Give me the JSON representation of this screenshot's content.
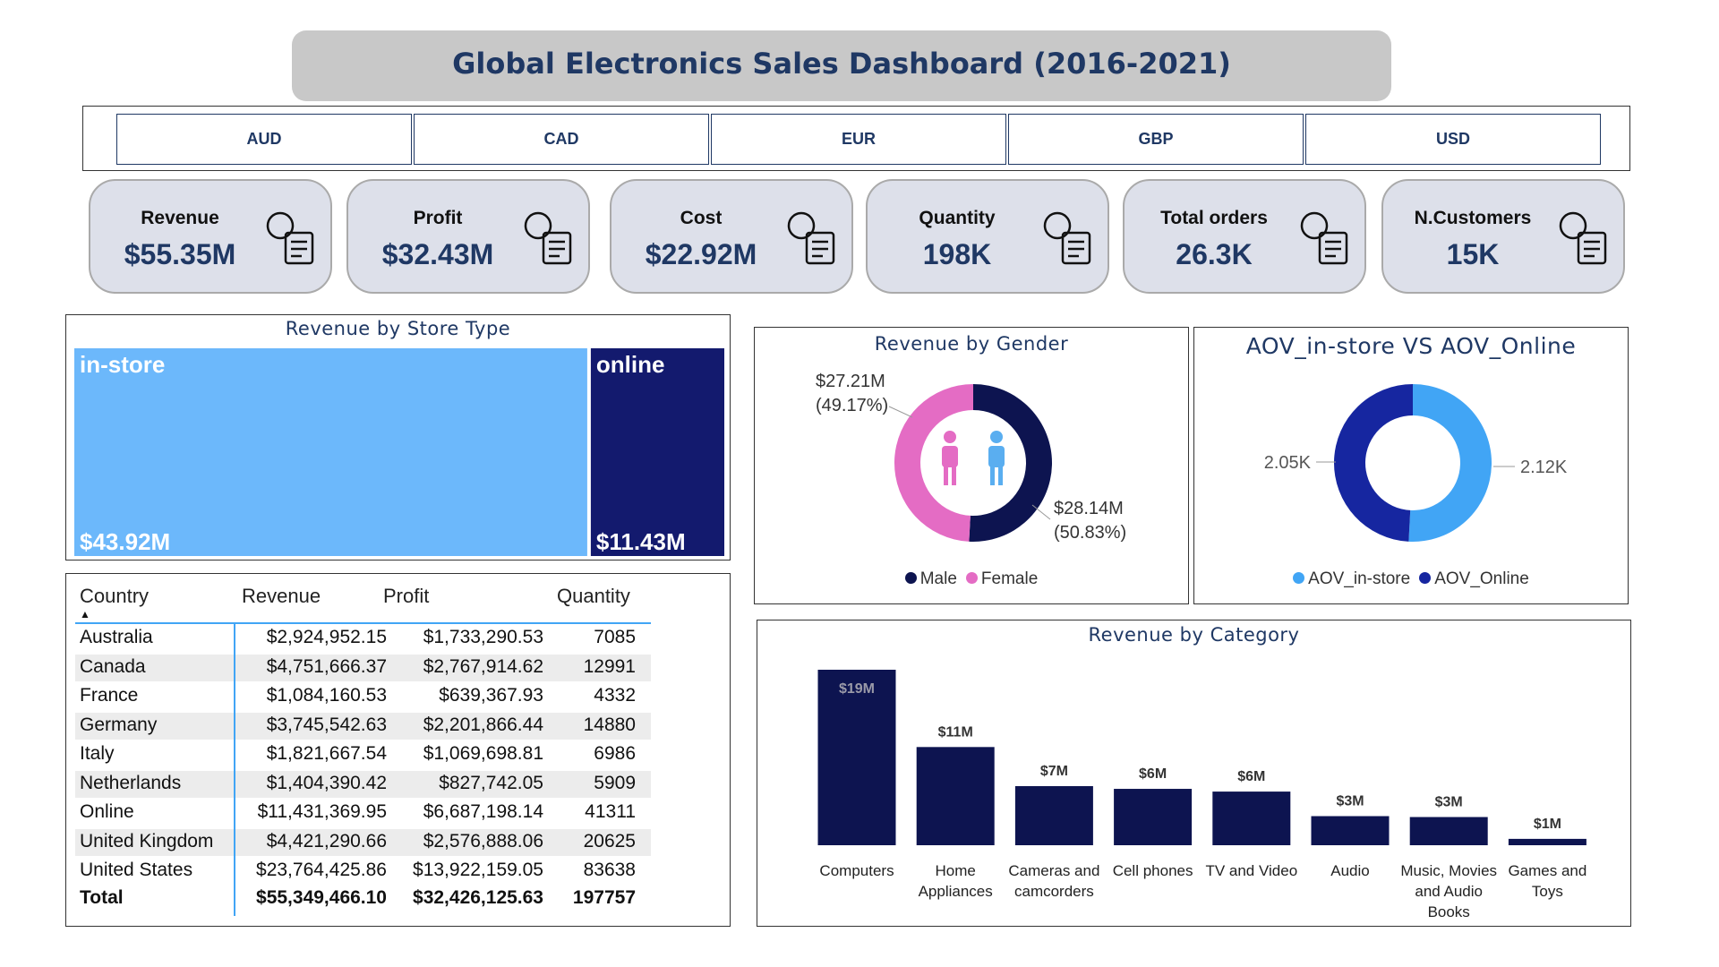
{
  "title": "Global Electronics Sales Dashboard (2016-2021)",
  "currencies": [
    "AUD",
    "CAD",
    "EUR",
    "GBP",
    "USD"
  ],
  "kpis": [
    {
      "label": "Revenue",
      "value": "$55.35M"
    },
    {
      "label": "Profit",
      "value": "$32.43M"
    },
    {
      "label": "Cost",
      "value": "$22.92M"
    },
    {
      "label": "Quantity",
      "value": "198K"
    },
    {
      "label": "Total orders",
      "value": "26.3K"
    },
    {
      "label": "N.Customers",
      "value": "15K"
    }
  ],
  "table": {
    "columns": [
      "Country",
      "Revenue",
      "Profit",
      "Quantity"
    ],
    "rows": [
      [
        "Australia",
        "$2,924,952.15",
        "$1,733,290.53",
        7085
      ],
      [
        "Canada",
        "$4,751,666.37",
        "$2,767,914.62",
        12991
      ],
      [
        "France",
        "$1,084,160.53",
        "$639,367.93",
        4332
      ],
      [
        "Germany",
        "$3,745,542.63",
        "$2,201,866.44",
        14880
      ],
      [
        "Italy",
        "$1,821,667.54",
        "$1,069,698.81",
        6986
      ],
      [
        "Netherlands",
        "$1,404,390.42",
        "$827,742.05",
        5909
      ],
      [
        "Online",
        "$11,431,369.95",
        "$6,687,198.14",
        41311
      ],
      [
        "United Kingdom",
        "$4,421,290.66",
        "$2,576,888.06",
        20625
      ],
      [
        "United States",
        "$23,764,425.86",
        "$13,922,159.05",
        83638
      ]
    ],
    "total": [
      "Total",
      "$55,349,466.10",
      "$32,426,125.63",
      197757
    ]
  },
  "chart_data": [
    {
      "type": "treemap",
      "title": "Revenue by Store Type",
      "categories": [
        "in-store",
        "online"
      ],
      "values": [
        43.92,
        11.43
      ],
      "value_labels": [
        "$43.92M",
        "$11.43M"
      ],
      "colors": [
        "#6cb8fb",
        "#131a6e"
      ]
    },
    {
      "type": "donut",
      "title": "Revenue by Gender",
      "categories": [
        "Male",
        "Female"
      ],
      "values": [
        28.14,
        27.21
      ],
      "value_labels": [
        "$28.14M",
        "$27.21M"
      ],
      "percents": [
        50.83,
        49.17
      ],
      "percent_labels": [
        "(50.83%)",
        "(49.17%)"
      ],
      "colors": [
        "#0d1450",
        "#e46cc4"
      ]
    },
    {
      "type": "donut",
      "title": "AOV_in-store VS AOV_Online",
      "categories": [
        "AOV_in-store",
        "AOV_Online"
      ],
      "values": [
        2120,
        2050
      ],
      "value_labels": [
        "2.12K",
        "2.05K"
      ],
      "colors": [
        "#41a5f5",
        "#1626a0"
      ]
    },
    {
      "type": "bar",
      "title": "Revenue by Category",
      "categories": [
        "Computers",
        "Home Appliances",
        "Cameras and camcorders",
        "Cell phones",
        "TV and Video",
        "Audio",
        "Music, Movies and Audio Books",
        "Games and Toys"
      ],
      "values": [
        19.3,
        10.8,
        6.5,
        6.2,
        5.9,
        3.2,
        3.1,
        0.7
      ],
      "value_labels": [
        "$19M",
        "$11M",
        "$7M",
        "$6M",
        "$6M",
        "$3M",
        "$3M",
        "$1M"
      ],
      "color": "#0d1450"
    }
  ]
}
